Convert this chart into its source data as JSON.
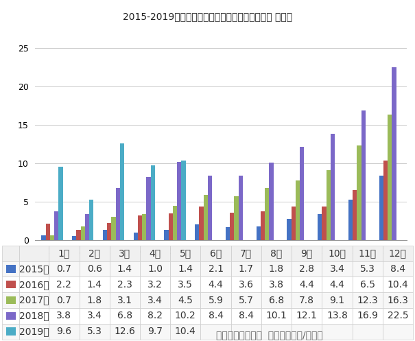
{
  "title": "2015-2019年新能源汽车月度销量趋势图（单位： 万辆）",
  "months": [
    "1月",
    "2月",
    "3月",
    "4月",
    "5月",
    "6月",
    "7月",
    "8月",
    "9月",
    "10月",
    "11月",
    "12月"
  ],
  "series": [
    {
      "label": "2015年",
      "color": "#4472C4",
      "values": [
        0.7,
        0.6,
        1.4,
        1.0,
        1.4,
        2.1,
        1.7,
        1.8,
        2.8,
        3.4,
        5.3,
        8.4
      ]
    },
    {
      "label": "2016年",
      "color": "#C0504D",
      "values": [
        2.2,
        1.4,
        2.3,
        3.2,
        3.5,
        4.4,
        3.6,
        3.8,
        4.4,
        4.4,
        6.5,
        10.4
      ]
    },
    {
      "label": "2017年",
      "color": "#9BBB59",
      "values": [
        0.7,
        1.8,
        3.1,
        3.4,
        4.5,
        5.9,
        5.7,
        6.8,
        7.8,
        9.1,
        12.3,
        16.3
      ]
    },
    {
      "label": "2018年",
      "color": "#7B68C8",
      "values": [
        3.8,
        3.4,
        6.8,
        8.2,
        10.2,
        8.4,
        8.4,
        10.1,
        12.1,
        13.8,
        16.9,
        22.5
      ]
    },
    {
      "label": "2019年",
      "color": "#4BACC6",
      "values": [
        9.6,
        5.3,
        12.6,
        9.7,
        10.4,
        null,
        null,
        null,
        null,
        null,
        null,
        null
      ]
    }
  ],
  "ylim": [
    0,
    25
  ],
  "yticks": [
    0,
    5,
    10,
    15,
    20,
    25
  ],
  "footer": "数据来源：中汽协  制表：电池网/数据部",
  "bg_color": "#FFFFFF",
  "plot_bg_color": "#FFFFFF",
  "grid_color": "#CCCCCC",
  "border_color": "#CCCCCC",
  "table_header_bg": "#F0F0F0",
  "table_odd_bg": "#F7F7F7",
  "table_even_bg": "#FFFFFF"
}
